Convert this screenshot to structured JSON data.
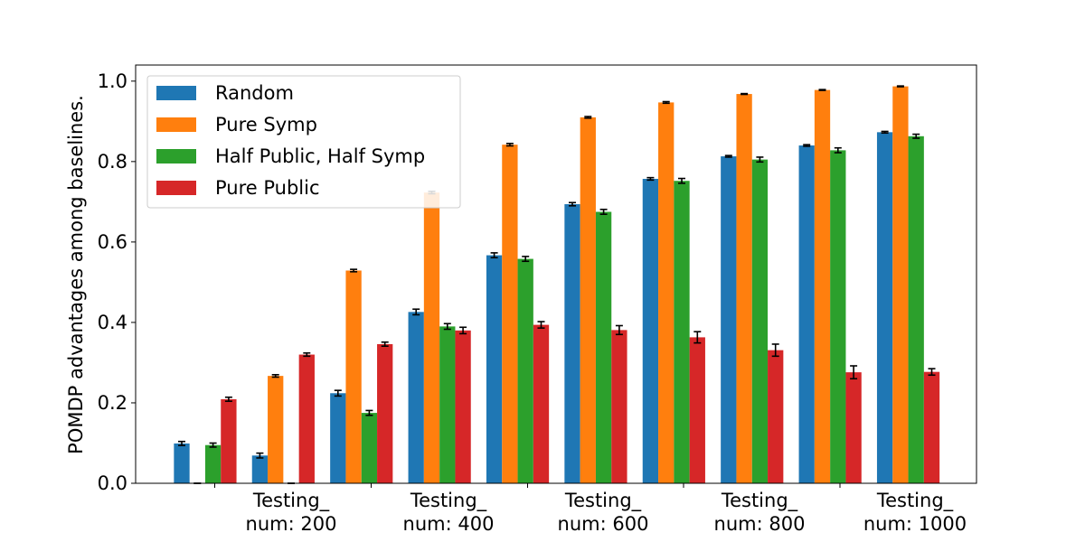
{
  "chart_data": {
    "type": "bar",
    "ylabel": "POMDP advantages among baselines.",
    "xlabel": "",
    "ylim": [
      0,
      1.04
    ],
    "yticks": [
      "0.0",
      "0.2",
      "0.4",
      "0.6",
      "0.8",
      "1.0"
    ],
    "x_tick_labels": [
      {
        "line1": "Testing_",
        "line2": "num: 200"
      },
      {
        "line1": "Testing_",
        "line2": "num: 400"
      },
      {
        "line1": "Testing_",
        "line2": "num: 600"
      },
      {
        "line1": "Testing_",
        "line2": "num: 800"
      },
      {
        "line1": "Testing_",
        "line2": "num: 1000"
      }
    ],
    "legend_position": "top-left",
    "series": [
      {
        "name": "Random",
        "color": "#1f77b4",
        "values": [
          0.099,
          0.069,
          0.224,
          0.426,
          0.567,
          0.694,
          0.757,
          0.813,
          0.84,
          0.873
        ],
        "errors": [
          0.005,
          0.006,
          0.007,
          0.007,
          0.006,
          0.004,
          0.003,
          0.002,
          0.002,
          0.002
        ]
      },
      {
        "name": "Pure Symp",
        "color": "#ff7f0e",
        "values": [
          0.0,
          0.267,
          0.529,
          0.723,
          0.842,
          0.91,
          0.947,
          0.968,
          0.978,
          0.987
        ],
        "errors": [
          0.0,
          0.003,
          0.003,
          0.003,
          0.003,
          0.002,
          0.002,
          0.001,
          0.001,
          0.001
        ]
      },
      {
        "name": "Half Public, Half Symp",
        "color": "#2ca02c",
        "values": [
          0.095,
          0.0,
          0.175,
          0.39,
          0.558,
          0.675,
          0.752,
          0.805,
          0.828,
          0.863
        ],
        "errors": [
          0.005,
          0.0,
          0.006,
          0.007,
          0.006,
          0.006,
          0.006,
          0.006,
          0.006,
          0.005
        ]
      },
      {
        "name": "Pure Public",
        "color": "#d62728",
        "values": [
          0.209,
          0.32,
          0.346,
          0.38,
          0.394,
          0.381,
          0.363,
          0.331,
          0.276,
          0.277
        ],
        "errors": [
          0.005,
          0.004,
          0.005,
          0.008,
          0.008,
          0.011,
          0.014,
          0.015,
          0.016,
          0.008
        ]
      }
    ]
  }
}
